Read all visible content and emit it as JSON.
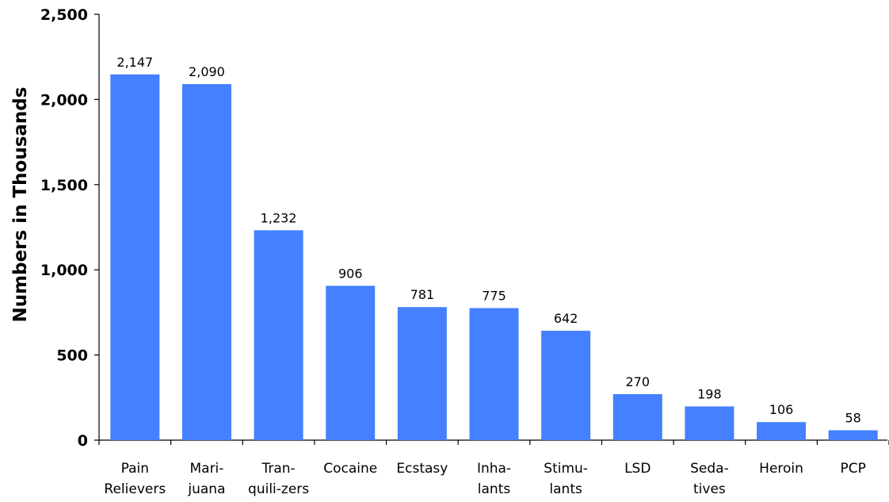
{
  "chart_data": {
    "type": "bar",
    "title": "",
    "xlabel": "",
    "ylabel": "Numbers in Thousands",
    "ylim": [
      0,
      2500
    ],
    "yticks": [
      0,
      500,
      1000,
      1500,
      2000,
      2500
    ],
    "ytick_labels": [
      "0",
      "500",
      "1,000",
      "1,500",
      "2,000",
      "2,500"
    ],
    "grid": false,
    "bar_color": "#4480FF",
    "categories": [
      [
        "Pain",
        "Relievers"
      ],
      [
        "Mari-",
        "juana"
      ],
      [
        "Tran-",
        "quili-zers"
      ],
      [
        "Cocaine"
      ],
      [
        "Ecstasy"
      ],
      [
        "Inha-",
        "lants"
      ],
      [
        "Stimu-",
        "lants"
      ],
      [
        "LSD"
      ],
      [
        "Seda-",
        "tives"
      ],
      [
        "Heroin"
      ],
      [
        "PCP"
      ]
    ],
    "values": [
      2147,
      2090,
      1232,
      906,
      781,
      775,
      642,
      270,
      198,
      106,
      58
    ],
    "data_labels": [
      "2,147",
      "2,090",
      "1,232",
      "906",
      "781",
      "775",
      "642",
      "270",
      "198",
      "106",
      "58"
    ]
  }
}
